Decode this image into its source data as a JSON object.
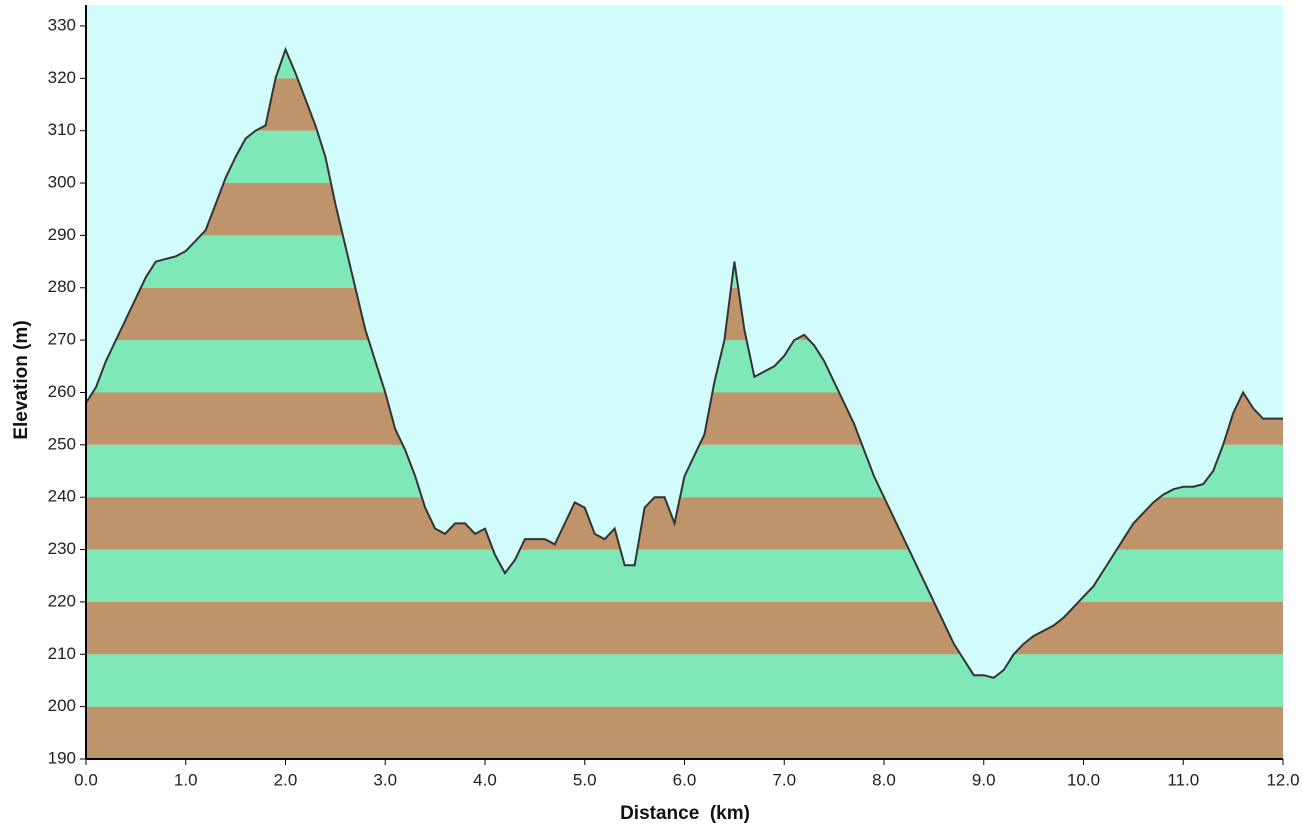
{
  "chart_data": {
    "type": "area",
    "x_label": "Distance  (km)",
    "y_label": "Elevation (m)",
    "x": [
      0.0,
      0.1,
      0.2,
      0.3,
      0.4,
      0.5,
      0.6,
      0.7,
      0.8,
      0.9,
      1.0,
      1.1,
      1.2,
      1.3,
      1.4,
      1.5,
      1.6,
      1.7,
      1.8,
      1.9,
      2.0,
      2.1,
      2.2,
      2.3,
      2.4,
      2.5,
      2.6,
      2.7,
      2.8,
      2.9,
      3.0,
      3.1,
      3.2,
      3.3,
      3.4,
      3.5,
      3.6,
      3.7,
      3.8,
      3.9,
      4.0,
      4.1,
      4.2,
      4.3,
      4.4,
      4.5,
      4.6,
      4.7,
      4.8,
      4.9,
      5.0,
      5.1,
      5.2,
      5.3,
      5.4,
      5.5,
      5.6,
      5.7,
      5.8,
      5.9,
      6.0,
      6.1,
      6.2,
      6.3,
      6.4,
      6.5,
      6.6,
      6.7,
      6.8,
      6.9,
      7.0,
      7.1,
      7.2,
      7.3,
      7.4,
      7.5,
      7.6,
      7.7,
      7.8,
      7.9,
      8.0,
      8.1,
      8.2,
      8.3,
      8.4,
      8.5,
      8.6,
      8.7,
      8.8,
      8.9,
      9.0,
      9.1,
      9.2,
      9.3,
      9.4,
      9.5,
      9.6,
      9.7,
      9.8,
      9.9,
      10.0,
      10.1,
      10.2,
      10.3,
      10.4,
      10.5,
      10.6,
      10.7,
      10.8,
      10.9,
      11.0,
      11.1,
      11.2,
      11.3,
      11.4,
      11.5,
      11.6,
      11.7,
      11.8,
      11.9,
      12.0
    ],
    "values": [
      258,
      261,
      266,
      270,
      274,
      278,
      282,
      285,
      285.5,
      286,
      287,
      289,
      291,
      296,
      301,
      305,
      308.5,
      310,
      311,
      320,
      325.5,
      321,
      316,
      311,
      305,
      296,
      288,
      280,
      272,
      266,
      260,
      253,
      249,
      244,
      238,
      234,
      233,
      235,
      235,
      233,
      234,
      229,
      225.5,
      228,
      232,
      232,
      232,
      231,
      235,
      239,
      238,
      233,
      232,
      234,
      227,
      227,
      238,
      240,
      240,
      235,
      244,
      248,
      252,
      262,
      270,
      285,
      272,
      263,
      264,
      265,
      267,
      270,
      271,
      269,
      266,
      262,
      258,
      254,
      249,
      244,
      240,
      236,
      232,
      228,
      224,
      220,
      216,
      212,
      209,
      206,
      206,
      205.5,
      207,
      210,
      212,
      213.5,
      214.5,
      215.5,
      217,
      219,
      221,
      223,
      226,
      229,
      232,
      235,
      237,
      239,
      240.5,
      241.5,
      242,
      242,
      242.5,
      245,
      250,
      256,
      260,
      257,
      255,
      255,
      255
    ],
    "xlim": [
      0,
      12
    ],
    "ylim": [
      190,
      334
    ],
    "xticks": [
      {
        "value": 0,
        "label": "0.0"
      },
      {
        "value": 1,
        "label": "1.0"
      },
      {
        "value": 2,
        "label": "2.0"
      },
      {
        "value": 3,
        "label": "3.0"
      },
      {
        "value": 4,
        "label": "4.0"
      },
      {
        "value": 5,
        "label": "5.0"
      },
      {
        "value": 6,
        "label": "6.0"
      },
      {
        "value": 7,
        "label": "7.0"
      },
      {
        "value": 8,
        "label": "8.0"
      },
      {
        "value": 9,
        "label": "9.0"
      },
      {
        "value": 10,
        "label": "10.0"
      },
      {
        "value": 11,
        "label": "11.0"
      },
      {
        "value": 12,
        "label": "12.0"
      }
    ],
    "yticks": [
      190,
      200,
      210,
      220,
      230,
      240,
      250,
      260,
      270,
      280,
      290,
      300,
      310,
      320,
      330
    ],
    "background_color": "#d2fbfb",
    "band_colors": [
      "#c0946a",
      "#7ee8b8"
    ],
    "line_color": "#333333"
  }
}
